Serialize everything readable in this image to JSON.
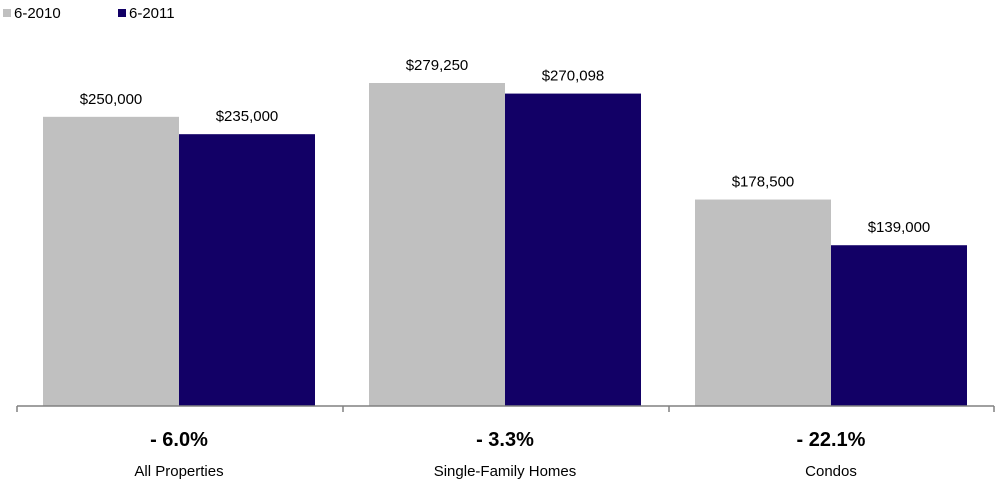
{
  "chart_data": {
    "type": "bar",
    "legend_position": "top-left",
    "grid": false,
    "ylim": [
      0,
      300000
    ],
    "categories": [
      "All Properties",
      "Single-Family Homes",
      "Condos"
    ],
    "changes": [
      "- 6.0%",
      "- 3.3%",
      "- 22.1%"
    ],
    "series": [
      {
        "name": "6-2010",
        "color": "#c0c0c0",
        "values": [
          250000,
          279250,
          178500
        ],
        "labels": [
          "$250,000",
          "$279,250",
          "$178,500"
        ]
      },
      {
        "name": "6-2011",
        "color": "#120066",
        "values": [
          235000,
          270098,
          139000
        ],
        "labels": [
          "$235,000",
          "$270,098",
          "$139,000"
        ]
      }
    ]
  }
}
